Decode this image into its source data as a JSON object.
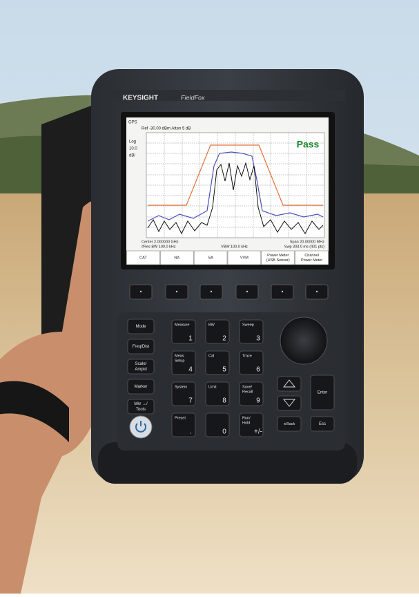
{
  "brand": "KEYSIGHT",
  "model": "FieldFox",
  "screen": {
    "status": "GPS",
    "reference": "Ref -30.00 dBm   Atten 5 dB",
    "scale": [
      "Log",
      "10.0",
      "dB/"
    ],
    "verdict": "Pass",
    "footer": {
      "center": "Center 2.000000 GHz",
      "span": "Span 20.00000 MHz",
      "rbw": "#Res BW 100.0 kHz",
      "vbw": "VBW 100.0 kHz",
      "sweep": "Swp 303.0 ms (401 pts)"
    },
    "softkeys": [
      [
        "CAT"
      ],
      [
        "NA"
      ],
      [
        "SA"
      ],
      [
        "VVM"
      ],
      [
        "Power Meter",
        "(USB Sensor)"
      ],
      [
        "Channel",
        "Power Meter"
      ]
    ]
  },
  "side_keys": [
    [
      "Mode"
    ],
    [
      "Freq/Dist"
    ],
    [
      "Scale/",
      "Amptd"
    ],
    [
      "Marker"
    ],
    [
      "Mkr →/",
      "Tools"
    ]
  ],
  "number_keys": [
    {
      "label": [
        "Measure"
      ],
      "digit": "1"
    },
    {
      "label": [
        "BW"
      ],
      "digit": "2"
    },
    {
      "label": [
        "Sweep"
      ],
      "digit": "3"
    },
    {
      "label": [
        "Meas",
        "Setup"
      ],
      "digit": "4"
    },
    {
      "label": [
        "Cal"
      ],
      "digit": "5"
    },
    {
      "label": [
        "Trace"
      ],
      "digit": "6"
    },
    {
      "label": [
        "System"
      ],
      "digit": "7"
    },
    {
      "label": [
        "Limit"
      ],
      "digit": "8"
    },
    {
      "label": [
        "Save/",
        "Recall"
      ],
      "digit": "9"
    },
    {
      "label": [
        "Preset"
      ],
      "digit": "."
    },
    {
      "label": [],
      "digit": "0"
    },
    {
      "label": [
        "Run/",
        "Hold"
      ],
      "digit": "+/-"
    }
  ],
  "nav_keys": {
    "enter": "Enter",
    "back": "◂ Back",
    "esc": "Esc"
  }
}
